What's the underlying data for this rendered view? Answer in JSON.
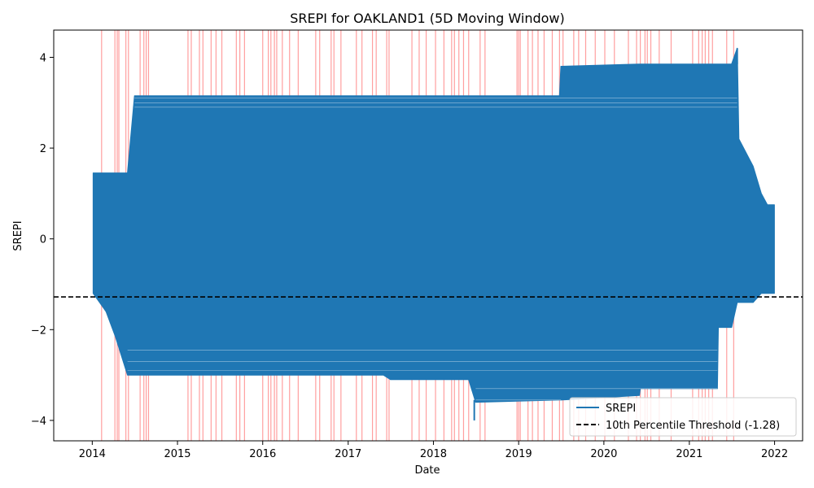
{
  "chart_data": {
    "type": "line",
    "title": "SREPI for OAKLAND1 (5D Moving Window)",
    "xlabel": "Date",
    "ylabel": "SREPI",
    "x_ticks": [
      "2014",
      "2015",
      "2016",
      "2017",
      "2018",
      "2019",
      "2020",
      "2021",
      "2022"
    ],
    "y_ticks": [
      -4,
      -2,
      0,
      2,
      4
    ],
    "xlim": [
      "2013-07-20",
      "2022-05-01"
    ],
    "ylim": [
      -4.45,
      4.6
    ],
    "grid": false,
    "legend_position": "lower right",
    "series": [
      {
        "name": "SREPI",
        "color": "#1f77b4",
        "envelope": [
          {
            "x": "2014-01-05",
            "low": -1.2,
            "high": 1.45
          },
          {
            "x": "2014-03-01",
            "low": -1.6,
            "high": 1.45
          },
          {
            "x": "2014-04-10",
            "low": -2.15,
            "high": 1.45
          },
          {
            "x": "2014-06-01",
            "low": -3.0,
            "high": 1.45
          },
          {
            "x": "2014-07-01",
            "low": -3.0,
            "high": 3.15
          },
          {
            "x": "2015-09-01",
            "low": -3.0,
            "high": 3.15
          },
          {
            "x": "2017-06-01",
            "low": -3.0,
            "high": 3.15
          },
          {
            "x": "2017-07-01",
            "low": -3.1,
            "high": 3.15
          },
          {
            "x": "2018-06-01",
            "low": -3.1,
            "high": 3.15
          },
          {
            "x": "2018-07-01",
            "low": -3.6,
            "high": 3.15
          },
          {
            "x": "2019-06-25",
            "low": -3.55,
            "high": 3.15
          },
          {
            "x": "2019-07-01",
            "low": -3.55,
            "high": 3.8
          },
          {
            "x": "2020-06-01",
            "low": -3.45,
            "high": 3.85
          },
          {
            "x": "2020-06-05",
            "low": -3.3,
            "high": 3.85
          },
          {
            "x": "2021-05-01",
            "low": -3.3,
            "high": 3.85
          },
          {
            "x": "2021-05-05",
            "low": -1.95,
            "high": 3.85
          },
          {
            "x": "2021-07-01",
            "low": -1.95,
            "high": 3.85
          },
          {
            "x": "2021-07-25",
            "low": -1.4,
            "high": 4.2
          },
          {
            "x": "2021-08-01",
            "low": -1.4,
            "high": 2.2
          },
          {
            "x": "2021-10-01",
            "low": -1.4,
            "high": 1.6
          },
          {
            "x": "2021-11-05",
            "low": -1.2,
            "high": 1.0
          },
          {
            "x": "2021-12-01",
            "low": -1.2,
            "high": 0.75
          },
          {
            "x": "2021-12-31",
            "low": -1.2,
            "high": 0.75
          }
        ],
        "spikes": [
          {
            "x": "2018-06-25",
            "low": -4.0,
            "high": -3.55
          },
          {
            "x": "2021-07-25",
            "low": 3.85,
            "high": 4.2
          }
        ]
      },
      {
        "name": "10th Percentile Threshold (-1.28)",
        "color": "#000000",
        "style": "dashed",
        "y": -1.28
      }
    ],
    "drought_marker_color": "#ff7f7f",
    "drought_marker_dates": [
      "2014-02-10",
      "2014-04-08",
      "2014-04-18",
      "2014-04-25",
      "2014-05-25",
      "2014-06-05",
      "2014-07-25",
      "2014-08-10",
      "2014-08-20",
      "2014-08-30",
      "2015-02-15",
      "2015-03-01",
      "2015-04-05",
      "2015-04-20",
      "2015-05-25",
      "2015-06-15",
      "2015-07-10",
      "2015-09-10",
      "2015-09-25",
      "2015-10-15",
      "2016-01-01",
      "2016-01-25",
      "2016-02-05",
      "2016-02-20",
      "2016-03-01",
      "2016-03-25",
      "2016-04-25",
      "2016-06-01",
      "2016-08-15",
      "2016-09-01",
      "2016-10-20",
      "2016-11-01",
      "2016-12-01",
      "2017-02-05",
      "2017-03-01",
      "2017-04-15",
      "2017-05-01",
      "2017-06-15",
      "2017-06-25",
      "2017-10-01",
      "2017-11-01",
      "2017-12-01",
      "2018-01-10",
      "2018-02-15",
      "2018-03-20",
      "2018-04-01",
      "2018-04-20",
      "2018-05-10",
      "2018-06-01",
      "2018-07-20",
      "2018-08-10",
      "2018-12-25",
      "2019-01-01",
      "2019-01-08",
      "2019-02-10",
      "2019-03-01",
      "2019-03-25",
      "2019-04-20",
      "2019-05-25",
      "2019-06-25",
      "2019-07-10",
      "2019-08-25",
      "2019-09-15",
      "2019-10-15",
      "2019-11-25",
      "2020-01-05",
      "2020-02-15",
      "2020-04-15",
      "2020-05-20",
      "2020-06-05",
      "2020-06-25",
      "2020-07-05",
      "2020-07-20",
      "2020-08-25",
      "2020-10-15",
      "2021-01-15",
      "2021-02-10",
      "2021-02-25",
      "2021-03-10",
      "2021-03-25",
      "2021-04-10",
      "2021-06-10",
      "2021-07-10"
    ]
  }
}
